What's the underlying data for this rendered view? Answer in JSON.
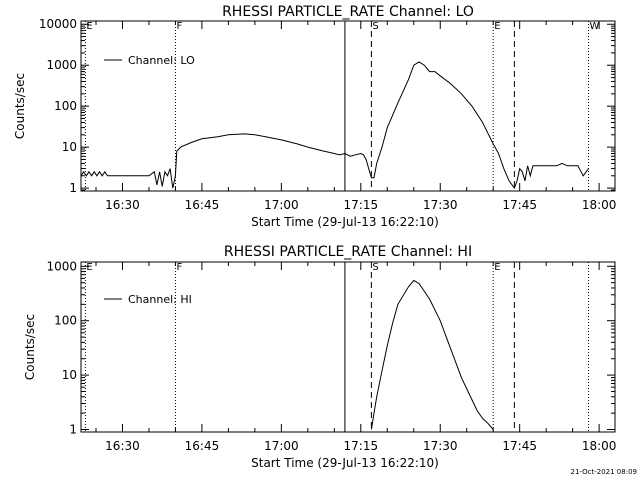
{
  "chart_data": [
    {
      "type": "line",
      "title": "RHESSI PARTICLE_RATE Channel: LO",
      "xlabel": "Start Time (29-Jul-13 16:22:10)",
      "ylabel": "Counts/sec",
      "yscale": "log",
      "xlim": [
        "16:22:10",
        "18:03"
      ],
      "ylim": [
        0.85,
        12000
      ],
      "xticks": [
        "16:30",
        "16:45",
        "17:00",
        "17:15",
        "17:30",
        "17:45",
        "18:00"
      ],
      "yticks": [
        "1",
        "10",
        "100",
        "1000",
        "10000"
      ],
      "legend": {
        "position": "top-left",
        "entries": [
          "Channel: LO"
        ]
      },
      "grid": false,
      "markers": [
        {
          "label": "E",
          "time": "16:23",
          "style": "dotted"
        },
        {
          "label": "F",
          "time": "16:40",
          "style": "dotted"
        },
        {
          "label": "",
          "time": "17:12",
          "style": "solid"
        },
        {
          "label": "S",
          "time": "17:17",
          "style": "dashed"
        },
        {
          "label": "E",
          "time": "17:40",
          "style": "dotted"
        },
        {
          "label": "",
          "time": "17:44",
          "style": "dashed"
        },
        {
          "label": "W",
          "time": "17:58",
          "style": "dotted"
        }
      ],
      "series": [
        {
          "name": "Channel: LO",
          "x": [
            "16:22:10",
            "16:22:40",
            "16:23:10",
            "16:23:40",
            "16:24:10",
            "16:24:40",
            "16:25:10",
            "16:25:40",
            "16:26:10",
            "16:26:40",
            "16:27:10",
            "16:29:00",
            "16:31:00",
            "16:33:00",
            "16:35:00",
            "16:36:00",
            "16:36:30",
            "16:37:00",
            "16:37:30",
            "16:38:00",
            "16:38:30",
            "16:39:00",
            "16:39:30",
            "16:40:00",
            "16:40:15",
            "16:41:00",
            "16:43:00",
            "16:45:00",
            "16:48:00",
            "16:50:00",
            "16:53:00",
            "16:55:00",
            "16:57:00",
            "17:00:00",
            "17:03:00",
            "17:05:00",
            "17:08:00",
            "17:10:00",
            "17:11:00",
            "17:12:00",
            "17:13:00",
            "17:14:00",
            "17:15:00",
            "17:15:30",
            "17:16:00",
            "17:16:30",
            "17:17:00",
            "17:17:30",
            "17:18:00",
            "17:19:00",
            "17:20:00",
            "17:22:00",
            "17:24:00",
            "17:25:00",
            "17:26:00",
            "17:27:00",
            "17:28:00",
            "17:29:00",
            "17:30:00",
            "17:32:00",
            "17:34:00",
            "17:36:00",
            "17:38:00",
            "17:40:00",
            "17:41:00",
            "17:42:00",
            "17:43:00",
            "17:44:00",
            "17:44:30",
            "17:45:00",
            "17:45:30",
            "17:46:00",
            "17:46:30",
            "17:47:00",
            "17:47:30",
            "17:48:00",
            "17:50:00",
            "17:52:00",
            "17:53:00",
            "17:54:00",
            "17:55:00",
            "17:56:00",
            "17:57:00",
            "17:58:00"
          ],
          "values": [
            2,
            2.5,
            2,
            2.5,
            2,
            2.5,
            2,
            2.5,
            2,
            2.5,
            2,
            2,
            2,
            2,
            2,
            2.5,
            1.2,
            2.5,
            1.1,
            2.5,
            2,
            3,
            1,
            2,
            8,
            10,
            13,
            16,
            18,
            20,
            21,
            20,
            18,
            15,
            12,
            10,
            8,
            7,
            6.5,
            7,
            6,
            6.5,
            7,
            6.5,
            5,
            3,
            1.8,
            1.8,
            4,
            10,
            30,
            120,
            450,
            1000,
            1200,
            1000,
            700,
            700,
            550,
            350,
            200,
            100,
            40,
            12,
            7,
            3,
            1.5,
            1,
            1.5,
            3,
            2.5,
            1.5,
            3.5,
            2,
            3.5,
            3.5,
            3.5,
            3.5,
            4,
            3.5,
            3.5,
            3.5,
            2,
            3
          ]
        }
      ]
    },
    {
      "type": "line",
      "title": "RHESSI PARTICLE_RATE Channel: HI",
      "xlabel": "Start Time (29-Jul-13 16:22:10)",
      "ylabel": "Counts/sec",
      "yscale": "log",
      "xlim": [
        "16:22:10",
        "18:03"
      ],
      "ylim": [
        0.9,
        1200
      ],
      "xticks": [
        "16:30",
        "16:45",
        "17:00",
        "17:15",
        "17:30",
        "17:45",
        "18:00"
      ],
      "yticks": [
        "1",
        "10",
        "100",
        "1000"
      ],
      "legend": {
        "position": "top-left",
        "entries": [
          "Channel: HI"
        ]
      },
      "grid": false,
      "markers": [
        {
          "label": "E",
          "time": "16:23",
          "style": "dotted"
        },
        {
          "label": "F",
          "time": "16:40",
          "style": "dotted"
        },
        {
          "label": "",
          "time": "17:12",
          "style": "solid"
        },
        {
          "label": "S",
          "time": "17:17",
          "style": "dashed"
        },
        {
          "label": "E",
          "time": "17:40",
          "style": "dotted"
        },
        {
          "label": "",
          "time": "17:44",
          "style": "dashed"
        },
        {
          "label": "",
          "time": "17:58",
          "style": "dotted"
        }
      ],
      "series": [
        {
          "name": "Channel: HI",
          "x": [
            "17:17:00",
            "17:17:30",
            "17:18:00",
            "17:19:00",
            "17:20:00",
            "17:21:00",
            "17:22:00",
            "17:24:00",
            "17:25:00",
            "17:26:00",
            "17:28:00",
            "17:30:00",
            "17:32:00",
            "17:34:00",
            "17:36:00",
            "17:37:00",
            "17:38:00",
            "17:39:00",
            "17:40:00"
          ],
          "values": [
            1,
            2,
            4,
            12,
            35,
            90,
            200,
            420,
            550,
            480,
            250,
            100,
            30,
            9,
            3.5,
            2.2,
            1.6,
            1.3,
            1
          ]
        }
      ]
    }
  ],
  "footer": {
    "timestamp": "21-Oct-2021 08:09"
  }
}
